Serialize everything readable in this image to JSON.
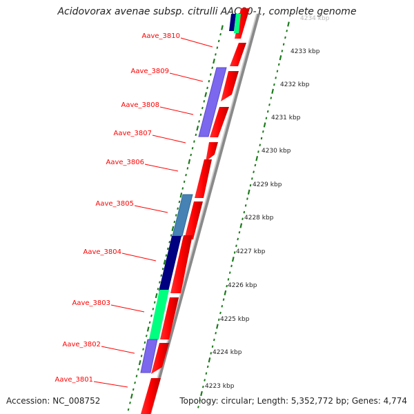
{
  "title": "Acidovorax avenae subsp. citrulli AAC00-1, complete genome",
  "footer": {
    "accession": "Accession: NC_008752",
    "summary": "Topology: circular; Length: 5,352,772 bp; Genes: 4,774"
  },
  "colors": {
    "gene_label": "#ff0000",
    "forward_gene": "#ff0000",
    "backbone": "#888888",
    "tick": "#1a7a1a",
    "cog_purple": "#7b68ee",
    "cog_navy": "#000080",
    "cog_steelblue": "#4682b4",
    "cog_springgreen": "#00ff7f"
  },
  "scale_labels": [
    "4234 kbp",
    "4233 kbp",
    "4232 kbp",
    "4231 kbp",
    "4230 kbp",
    "4229 kbp",
    "4228 kbp",
    "4227 kbp",
    "4226 kbp",
    "4225 kbp",
    "4224 kbp",
    "4223 kbp"
  ],
  "gene_labels": [
    "Aave_3810",
    "Aave_3809",
    "Aave_3808",
    "Aave_3807",
    "Aave_3806",
    "Aave_3805",
    "Aave_3804",
    "Aave_3803",
    "Aave_3802",
    "Aave_3801"
  ]
}
